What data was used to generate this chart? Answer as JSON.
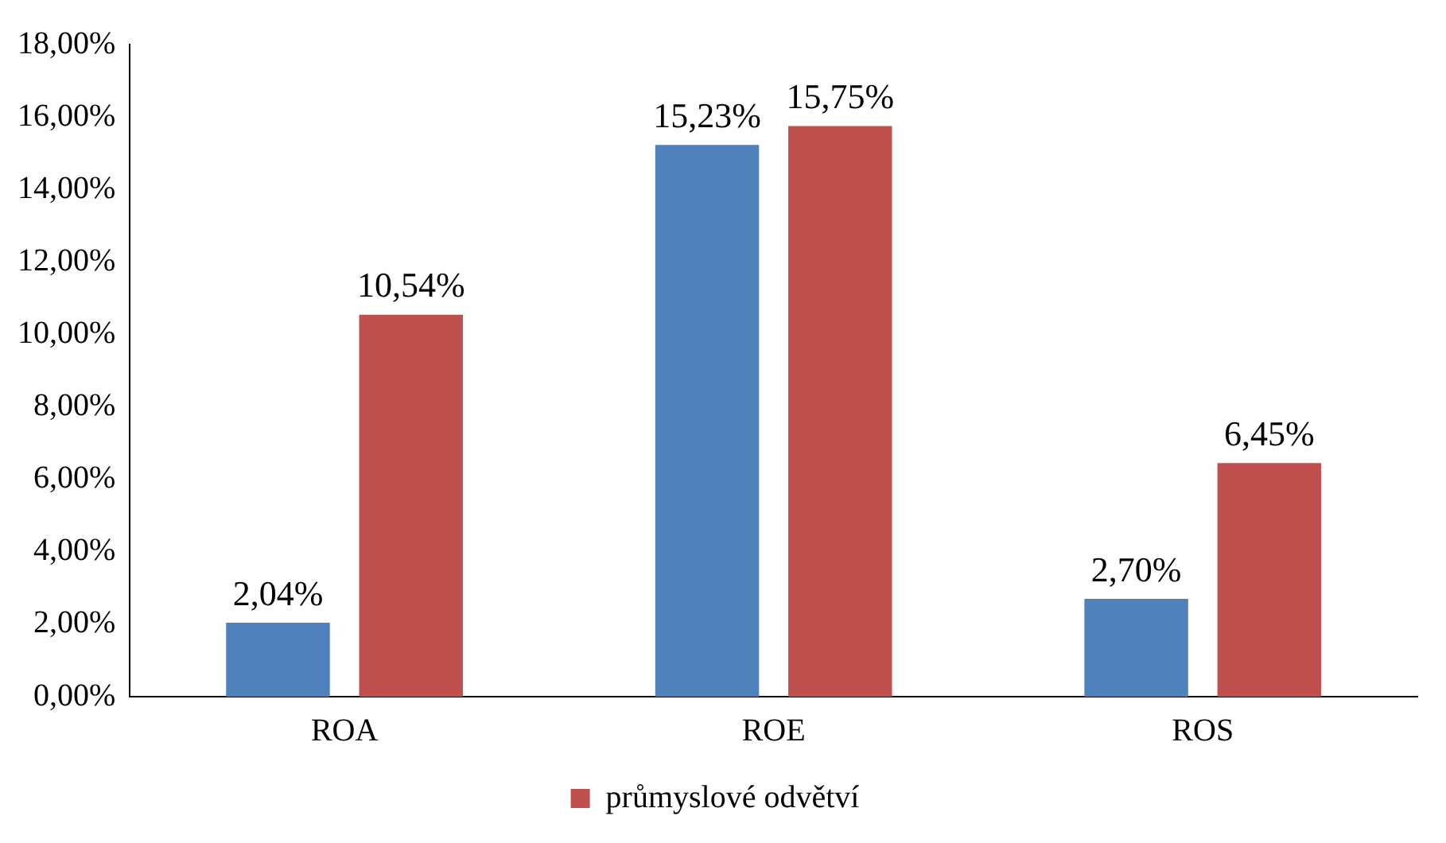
{
  "chart_data": {
    "type": "bar",
    "categories": [
      "ROA",
      "ROE",
      "ROS"
    ],
    "series": [
      {
        "color": "#4f81bd",
        "values": [
          2.04,
          15.23,
          2.7
        ],
        "value_labels": [
          "2,04%",
          "15,23%",
          "2,70%"
        ]
      },
      {
        "name": "průmyslové odvětví",
        "color": "#c0504d",
        "values": [
          10.54,
          15.75,
          6.45
        ],
        "value_labels": [
          "10,54%",
          "15,75%",
          "6,45%"
        ]
      }
    ],
    "ylim": [
      0,
      18
    ],
    "yticks": [
      {
        "value": 0,
        "label": "0,00%"
      },
      {
        "value": 2,
        "label": "2,00%"
      },
      {
        "value": 4,
        "label": "4,00%"
      },
      {
        "value": 6,
        "label": "6,00%"
      },
      {
        "value": 8,
        "label": "8,00%"
      },
      {
        "value": 10,
        "label": "10,00%"
      },
      {
        "value": 12,
        "label": "12,00%"
      },
      {
        "value": 14,
        "label": "14,00%"
      },
      {
        "value": 16,
        "label": "16,00%"
      },
      {
        "value": 18,
        "label": "18,00%"
      }
    ],
    "grid": false,
    "legend": "bottom"
  }
}
